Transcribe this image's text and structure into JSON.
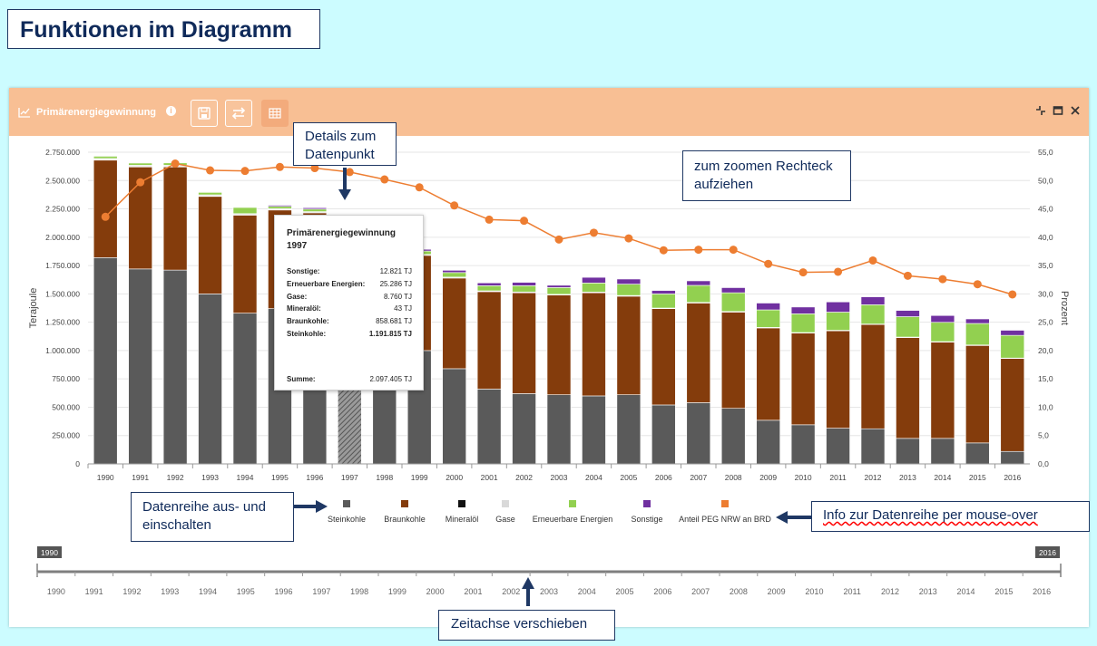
{
  "slide": {
    "title": "Funktionen im Diagramm"
  },
  "panel": {
    "title": "Primärenergiegewinnung",
    "icons": [
      "line-chart-icon",
      "info-icon",
      "save-icon",
      "swap-icon",
      "table-icon",
      "collapse-icon",
      "maximize-icon",
      "close-icon"
    ],
    "header_color": "#f8bf94"
  },
  "callouts": {
    "details": "Details zum Datenpunkt",
    "zoom": "zum zoomen Rechteck aufziehen",
    "series_toggle": "Datenreihe aus- und einschalten",
    "series_info": "Info zur Datenreihe per mouse-over",
    "timeline": "Zeitachse verschieben"
  },
  "tooltip": {
    "title": "Primärenergiegewinnung",
    "year": "1997",
    "rows": [
      {
        "label": "Sonstige:",
        "value": "12.821 TJ"
      },
      {
        "label": "Erneuerbare Energien:",
        "value": "25.286 TJ"
      },
      {
        "label": "Gase:",
        "value": "8.760 TJ"
      },
      {
        "label": "Mineralöl:",
        "value": "43 TJ"
      },
      {
        "label": "Braunkohle:",
        "value": "858.681 TJ"
      },
      {
        "label": "Steinkohle:",
        "value": "1.191.815 TJ"
      }
    ],
    "sum_label": "Summe:",
    "sum_value": "2.097.405 TJ"
  },
  "navigator": {
    "start_label": "1990",
    "end_label": "2016",
    "years": [
      "1990",
      "1991",
      "1992",
      "1993",
      "1994",
      "1995",
      "1996",
      "1997",
      "1998",
      "1999",
      "2000",
      "2001",
      "2002",
      "2003",
      "2004",
      "2005",
      "2006",
      "2007",
      "2008",
      "2009",
      "2010",
      "2011",
      "2012",
      "2013",
      "2014",
      "2015",
      "2016"
    ]
  },
  "chart_data": {
    "type": "bar",
    "stacked": true,
    "title": "",
    "xlabel": "",
    "ylabel": "Terajoule",
    "y2label": "Prozent",
    "ylim": [
      0,
      2750000
    ],
    "y2lim": [
      0,
      55
    ],
    "yticks": [
      "0",
      "250.000",
      "500.000",
      "750.000",
      "1.000.000",
      "1.250.000",
      "1.500.000",
      "1.750.000",
      "2.000.000",
      "2.250.000",
      "2.500.000",
      "2.750.000"
    ],
    "y2ticks": [
      "0,0",
      "5,0",
      "10,0",
      "15,0",
      "20,0",
      "25,0",
      "30,0",
      "35,0",
      "40,0",
      "45,0",
      "50,0",
      "55,0"
    ],
    "grid": true,
    "highlight_category": "1997",
    "categories": [
      "1990",
      "1991",
      "1992",
      "1993",
      "1994",
      "1995",
      "1996",
      "1997",
      "1998",
      "1999",
      "2000",
      "2001",
      "2002",
      "2003",
      "2004",
      "2005",
      "2006",
      "2007",
      "2008",
      "2009",
      "2010",
      "2011",
      "2012",
      "2013",
      "2014",
      "2015",
      "2016"
    ],
    "series": [
      {
        "name": "Steinkohle",
        "color": "#5a5a5a",
        "values": [
          1820000,
          1720000,
          1710000,
          1500000,
          1330000,
          1370000,
          1350000,
          1191815,
          1180000,
          1000000,
          840000,
          660000,
          620000,
          610000,
          600000,
          610000,
          520000,
          540000,
          490000,
          385000,
          345000,
          315000,
          310000,
          225000,
          225000,
          185000,
          110000
        ]
      },
      {
        "name": "Braunkohle",
        "color": "#843c0c",
        "values": [
          860000,
          900000,
          910000,
          860000,
          865000,
          870000,
          865000,
          858681,
          850000,
          840000,
          800000,
          860000,
          890000,
          880000,
          910000,
          870000,
          850000,
          880000,
          850000,
          815000,
          810000,
          860000,
          920000,
          890000,
          850000,
          860000,
          820000
        ]
      },
      {
        "name": "Mineralöl",
        "color": "#111111",
        "values": [
          5000,
          5000,
          5000,
          4000,
          4000,
          3000,
          2000,
          43,
          40,
          40,
          30,
          30,
          30,
          30,
          30,
          30,
          30,
          30,
          30,
          30,
          30,
          30,
          30,
          30,
          30,
          30,
          30
        ]
      },
      {
        "name": "Gase",
        "color": "#d9d9d9",
        "values": [
          10000,
          10000,
          10000,
          10000,
          9000,
          9000,
          9000,
          8760,
          8000,
          8000,
          8000,
          7000,
          7000,
          6000,
          6000,
          6000,
          5000,
          5000,
          5000,
          4000,
          4000,
          4000,
          4000,
          4000,
          4000,
          4000,
          4000
        ]
      },
      {
        "name": "Erneuerbare Energien",
        "color": "#92d050",
        "values": [
          20000,
          20000,
          21000,
          22000,
          55000,
          20000,
          22000,
          25286,
          28000,
          30000,
          40000,
          45000,
          55000,
          60000,
          80000,
          100000,
          125000,
          150000,
          165000,
          155000,
          165000,
          160000,
          170000,
          180000,
          170000,
          190000,
          200000
        ]
      },
      {
        "name": "Sonstige",
        "color": "#7030a0",
        "values": [
          5000,
          5000,
          5000,
          5000,
          5000,
          10000,
          12000,
          12821,
          14000,
          15000,
          20000,
          25000,
          30000,
          20000,
          50000,
          45000,
          30000,
          40000,
          45000,
          60000,
          60000,
          90000,
          70000,
          55000,
          60000,
          40000,
          45000
        ]
      }
    ],
    "line_series": {
      "name": "Anteil PEG NRW an BRD",
      "color": "#ed7d31",
      "axis": "right",
      "values": [
        43.6,
        49.7,
        53.0,
        51.8,
        51.7,
        52.4,
        52.2,
        51.5,
        50.2,
        48.8,
        45.6,
        43.1,
        42.9,
        39.6,
        40.8,
        39.8,
        37.7,
        37.8,
        37.8,
        35.3,
        33.8,
        33.9,
        35.9,
        33.2,
        32.6,
        31.7,
        29.9
      ]
    }
  }
}
